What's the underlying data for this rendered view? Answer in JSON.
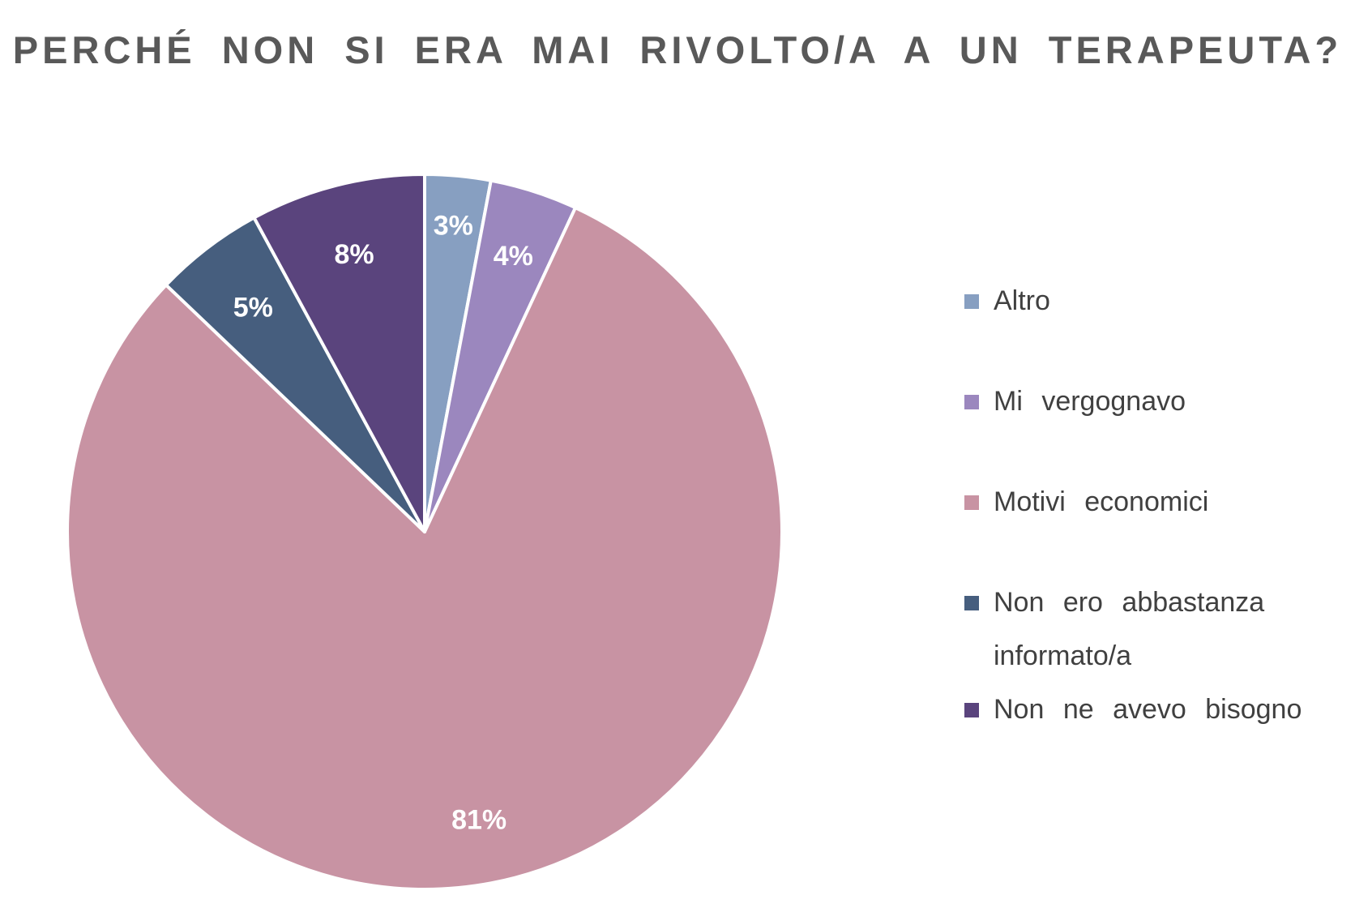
{
  "chart_data": {
    "type": "pie",
    "title": "PERCHÉ NON SI ERA MAI RIVOLTO/A A UN TERAPEUTA?",
    "legend_position": "right",
    "slices": [
      {
        "label": "Altro",
        "value": 3,
        "display": "3%",
        "color": "#879fc1"
      },
      {
        "label": "Mi vergognavo",
        "value": 4,
        "display": "4%",
        "color": "#9b87be"
      },
      {
        "label": "Motivi economici",
        "value": 81,
        "display": "81%",
        "color": "#c893a3"
      },
      {
        "label": "Non ero abbastanza informato/a",
        "value": 5,
        "display": "5%",
        "color": "#465e7e"
      },
      {
        "label": "Non ne avevo bisogno",
        "value": 8,
        "display": "8%",
        "color": "#5a447d"
      }
    ]
  }
}
